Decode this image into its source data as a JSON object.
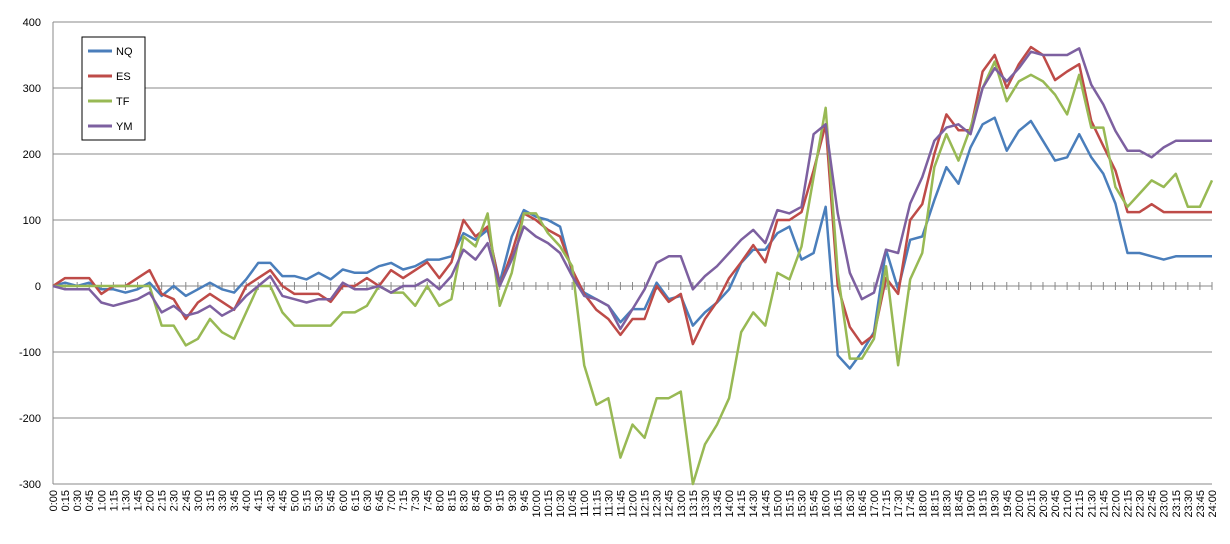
{
  "chart_data": {
    "type": "line",
    "categories": [
      "0:00",
      "0:15",
      "0:30",
      "0:45",
      "1:00",
      "1:15",
      "1:30",
      "1:45",
      "2:00",
      "2:15",
      "2:30",
      "2:45",
      "3:00",
      "3:15",
      "3:30",
      "3:45",
      "4:00",
      "4:15",
      "4:30",
      "4:45",
      "5:00",
      "5:15",
      "5:30",
      "5:45",
      "6:00",
      "6:15",
      "6:30",
      "6:45",
      "7:00",
      "7:15",
      "7:30",
      "7:45",
      "8:00",
      "8:15",
      "8:30",
      "8:45",
      "9:00",
      "9:15",
      "9:30",
      "9:45",
      "10:00",
      "10:15",
      "10:30",
      "10:45",
      "11:00",
      "11:15",
      "11:30",
      "11:45",
      "12:00",
      "12:15",
      "12:30",
      "12:45",
      "13:00",
      "13:15",
      "13:30",
      "13:45",
      "14:00",
      "14:15",
      "14:30",
      "14:45",
      "15:00",
      "15:15",
      "15:30",
      "15:45",
      "16:00",
      "16:15",
      "16:30",
      "16:45",
      "17:00",
      "17:15",
      "17:30",
      "17:45",
      "18:00",
      "18:15",
      "18:30",
      "18:45",
      "19:00",
      "19:15",
      "19:30",
      "19:45",
      "20:00",
      "20:15",
      "20:30",
      "20:45",
      "21:00",
      "21:15",
      "21:30",
      "21:45",
      "22:00",
      "22:15",
      "22:30",
      "22:45",
      "23:00",
      "23:15",
      "23:30",
      "23:45",
      "24:00"
    ],
    "series": [
      {
        "name": "NQ",
        "color": "#4a7ebb",
        "values": [
          0,
          5,
          0,
          5,
          -5,
          -5,
          -10,
          -5,
          5,
          -15,
          0,
          -15,
          -5,
          5,
          -5,
          -10,
          10,
          35,
          35,
          15,
          15,
          10,
          20,
          10,
          25,
          20,
          20,
          30,
          35,
          25,
          30,
          40,
          40,
          45,
          80,
          70,
          85,
          5,
          75,
          115,
          105,
          100,
          90,
          20,
          -10,
          -20,
          -30,
          -55,
          -35,
          -35,
          5,
          -20,
          -15,
          -60,
          -40,
          -25,
          -5,
          35,
          55,
          55,
          80,
          90,
          40,
          50,
          120,
          -105,
          -125,
          -100,
          -70,
          55,
          -5,
          70,
          75,
          130,
          180,
          155,
          210,
          245,
          255,
          205,
          235,
          250,
          220,
          190,
          195,
          230,
          195,
          170,
          125,
          50,
          50,
          45,
          40,
          45,
          45,
          45,
          45
        ]
      },
      {
        "name": "ES",
        "color": "#be4b48",
        "values": [
          0,
          12,
          12,
          12,
          -12,
          0,
          0,
          12,
          24,
          -12,
          -20,
          -50,
          -25,
          -12,
          -24,
          -36,
          0,
          12,
          24,
          0,
          -12,
          -12,
          -12,
          -24,
          0,
          0,
          12,
          0,
          24,
          12,
          24,
          36,
          12,
          36,
          100,
          75,
          90,
          0,
          50,
          110,
          100,
          85,
          75,
          25,
          -12,
          -36,
          -50,
          -74,
          -50,
          -50,
          0,
          -24,
          -12,
          -88,
          -50,
          -24,
          12,
          36,
          62,
          36,
          100,
          100,
          112,
          175,
          245,
          0,
          -62,
          -88,
          -74,
          12,
          -12,
          100,
          124,
          200,
          260,
          236,
          236,
          325,
          350,
          300,
          336,
          362,
          350,
          312,
          325,
          336,
          250,
          212,
          175,
          112,
          112,
          124,
          112,
          112,
          112,
          112,
          112
        ]
      },
      {
        "name": "TF",
        "color": "#98b954",
        "values": [
          0,
          0,
          0,
          0,
          0,
          0,
          0,
          0,
          0,
          -60,
          -60,
          -90,
          -80,
          -50,
          -70,
          -80,
          -40,
          0,
          0,
          -40,
          -60,
          -60,
          -60,
          -60,
          -40,
          -40,
          -30,
          0,
          -10,
          -10,
          -30,
          0,
          -30,
          -20,
          75,
          60,
          110,
          -30,
          20,
          110,
          110,
          80,
          60,
          30,
          -120,
          -180,
          -170,
          -260,
          -210,
          -230,
          -170,
          -170,
          -160,
          -300,
          -240,
          -210,
          -170,
          -70,
          -40,
          -60,
          20,
          10,
          60,
          165,
          270,
          20,
          -110,
          -110,
          -80,
          30,
          -120,
          10,
          50,
          180,
          230,
          190,
          240,
          300,
          340,
          280,
          310,
          320,
          310,
          290,
          260,
          320,
          240,
          240,
          150,
          120,
          140,
          160,
          150,
          170,
          120,
          120,
          160
        ]
      },
      {
        "name": "YM",
        "color": "#7d60a0",
        "values": [
          0,
          -5,
          -5,
          -5,
          -25,
          -30,
          -25,
          -20,
          -10,
          -40,
          -30,
          -45,
          -40,
          -30,
          -45,
          -35,
          -15,
          0,
          15,
          -15,
          -20,
          -25,
          -20,
          -20,
          5,
          -5,
          -5,
          0,
          -10,
          0,
          0,
          10,
          -5,
          15,
          55,
          40,
          65,
          0,
          40,
          90,
          75,
          65,
          50,
          15,
          -15,
          -20,
          -30,
          -65,
          -35,
          -5,
          35,
          45,
          45,
          -5,
          15,
          30,
          50,
          70,
          85,
          65,
          115,
          110,
          120,
          230,
          245,
          110,
          20,
          -20,
          -10,
          55,
          50,
          125,
          165,
          220,
          240,
          245,
          230,
          300,
          330,
          310,
          330,
          355,
          350,
          350,
          350,
          360,
          305,
          275,
          235,
          205,
          205,
          195,
          210,
          220,
          220,
          220,
          220
        ]
      }
    ],
    "ylim": [
      -300,
      400
    ],
    "yticks": [
      -300,
      -200,
      -100,
      0,
      100,
      200,
      300,
      400
    ],
    "grid": true,
    "legend": "top-left"
  }
}
